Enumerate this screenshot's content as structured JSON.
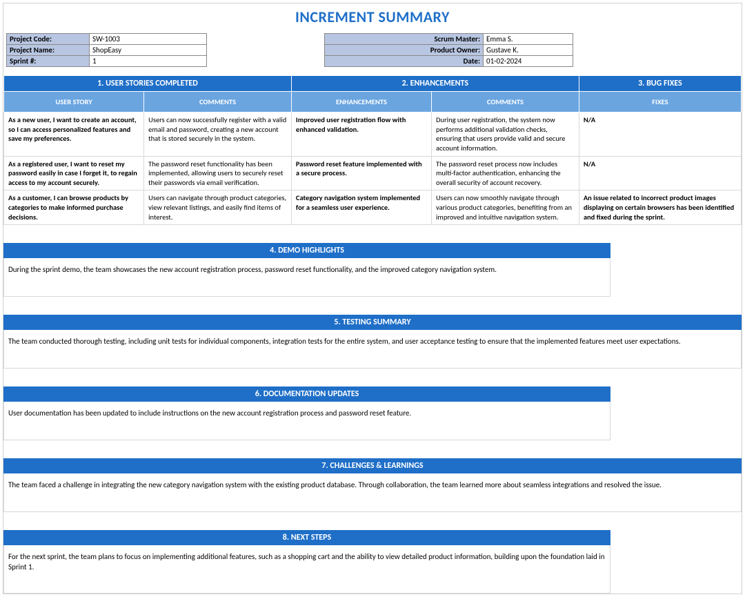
{
  "colors": {
    "brand_blue": "#1f6fc8",
    "header_blue": "#6aa5e0",
    "label_fill": "#b8c6e2",
    "border_light": "#d8d8d8",
    "border_dark": "#888888",
    "text": "#000000",
    "bg": "#ffffff"
  },
  "title": "INCREMENT SUMMARY",
  "meta_left": {
    "project_code_label": "Project Code:",
    "project_code": "SW-1003",
    "project_name_label": "Project Name:",
    "project_name": "ShopEasy",
    "sprint_label": "Sprint #:",
    "sprint": "1"
  },
  "meta_right": {
    "scrum_master_label": "Scrum Master:",
    "scrum_master": "Emma S.",
    "product_owner_label": "Product Owner:",
    "product_owner": "Gustave K.",
    "date_label": "Date:",
    "date": "01-02-2024"
  },
  "headers": {
    "s1": "1. USER STORIES COMPLETED",
    "s2": "2. ENHANCEMENTS",
    "s3": "3. BUG FIXES",
    "user_story": "USER STORY",
    "comments": "COMMENTS",
    "enhancements": "ENHANCEMENTS",
    "fixes": "FIXES",
    "s4": "4. DEMO HIGHLIGHTS",
    "s5": "5. TESTING SUMMARY",
    "s6": "6. DOCUMENTATION UPDATES",
    "s7": "7. CHALLENGES & LEARNINGS",
    "s8": "8. NEXT STEPS"
  },
  "rows": [
    {
      "story": "As a new user, I want to create an account, so I can access personalized features and save my preferences.",
      "story_c": "Users can now successfully register with a valid email and password, creating a new account that is stored securely in the system.",
      "enh": "Improved user registration flow with enhanced validation.",
      "enh_c": "During user registration, the system now performs additional validation checks, ensuring that users provide valid and secure account information.",
      "fix": "N/A"
    },
    {
      "story": "As a registered user, I want to reset my password easily in case I forget it, to regain access to my account securely.",
      "story_c": "The password reset functionality has been implemented, allowing users to securely reset their passwords via email verification.",
      "enh": "Password reset feature implemented with a secure process.",
      "enh_c": "The password reset process now includes multi-factor authentication, enhancing the overall security of account recovery.",
      "fix": "N/A"
    },
    {
      "story": "As a customer, I can browse products by categories to make informed purchase decisions.",
      "story_c": "Users can navigate through product categories, view relevant listings, and easily find items of interest.",
      "enh": "Category navigation system implemented for a seamless user experience.",
      "enh_c": "Users can now smoothly navigate through various product categories, benefiting from an improved and intuitive navigation system.",
      "fix": "An issue related to incorrect product images displaying on certain browsers has been identified and fixed during the sprint."
    }
  ],
  "demo": "During the sprint demo, the team showcases the new account registration process, password reset functionality, and the improved category navigation system.",
  "testing": "The team conducted thorough testing, including unit tests for individual components, integration tests for the entire system, and user acceptance testing to ensure that the implemented features meet user expectations.",
  "docs": "User documentation has been updated to include instructions on the new account registration process and password reset feature.",
  "challenges": "The team faced a challenge in integrating the new category navigation system with the existing product database. Through collaboration, the team learned more about seamless integrations and resolved the issue.",
  "next": "For the next sprint, the team plans to focus on implementing additional features, such as a shopping cart and the ability to view detailed product information, building upon the foundation laid in Sprint 1."
}
